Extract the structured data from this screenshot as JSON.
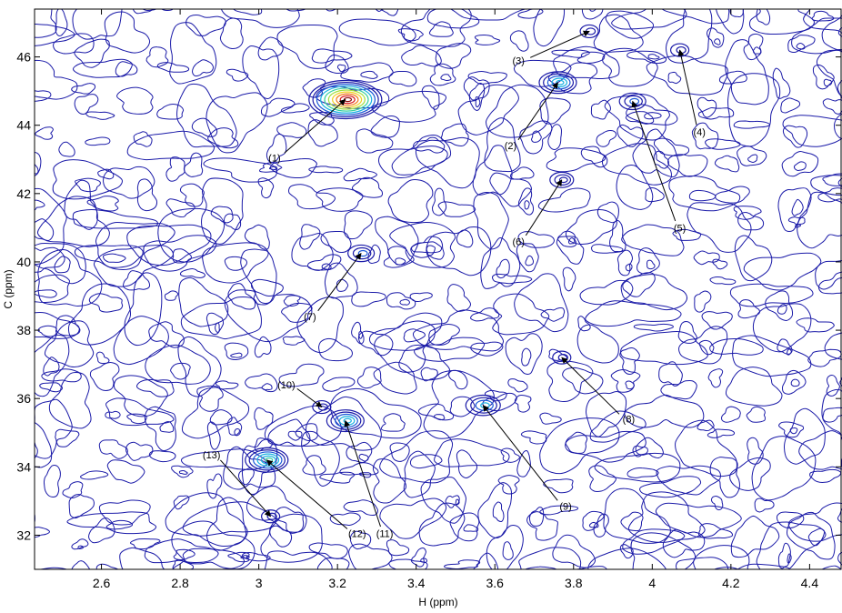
{
  "chart_data": {
    "type": "contour",
    "xlabel": "H (ppm)",
    "ylabel": "C (ppm)",
    "xlim": [
      2.43,
      4.48
    ],
    "ylim": [
      31.0,
      47.4
    ],
    "x_ticks": [
      "2.6",
      "2.8",
      "3",
      "3.2",
      "3.4",
      "3.6",
      "3.8",
      "4",
      "4.2",
      "4.4"
    ],
    "y_ticks": [
      "32",
      "34",
      "36",
      "38",
      "40",
      "42",
      "44",
      "46"
    ],
    "x_tick_values": [
      2.6,
      2.8,
      3.0,
      3.2,
      3.4,
      3.6,
      3.8,
      4.0,
      4.2,
      4.4
    ],
    "y_tick_values": [
      32,
      34,
      36,
      38,
      40,
      42,
      44,
      46
    ],
    "grid": false,
    "contour_color": "#1a1aa8",
    "peaks": [
      {
        "label": "(1)",
        "x": 3.22,
        "y": 44.75,
        "intensity": 1.0,
        "label_x": 3.04,
        "label_y": 43.05
      },
      {
        "label": "(2)",
        "x": 3.76,
        "y": 45.25,
        "intensity": 0.35,
        "label_x": 3.64,
        "label_y": 43.4
      },
      {
        "label": "(3)",
        "x": 3.84,
        "y": 46.75,
        "intensity": 0.0,
        "label_x": 3.66,
        "label_y": 45.9
      },
      {
        "label": "(4)",
        "x": 4.07,
        "y": 46.2,
        "intensity": 0.0,
        "label_x": 4.12,
        "label_y": 43.8
      },
      {
        "label": "(5)",
        "x": 3.95,
        "y": 44.7,
        "intensity": 0.15,
        "label_x": 4.07,
        "label_y": 41.0
      },
      {
        "label": "(6)",
        "x": 3.77,
        "y": 42.4,
        "intensity": 0.1,
        "label_x": 3.66,
        "label_y": 40.6
      },
      {
        "label": "(7)",
        "x": 3.26,
        "y": 40.25,
        "intensity": 0.15,
        "label_x": 3.13,
        "label_y": 38.4
      },
      {
        "label": "(8)",
        "x": 3.77,
        "y": 37.2,
        "intensity": 0.0,
        "label_x": 3.94,
        "label_y": 35.4
      },
      {
        "label": "(9)",
        "x": 3.57,
        "y": 35.8,
        "intensity": 0.3,
        "label_x": 3.78,
        "label_y": 32.85
      },
      {
        "label": "(10)",
        "x": 3.16,
        "y": 35.75,
        "intensity": 0.0,
        "label_x": 3.07,
        "label_y": 36.4
      },
      {
        "label": "(11)",
        "x": 3.22,
        "y": 35.35,
        "intensity": 0.35,
        "label_x": 3.32,
        "label_y": 32.05
      },
      {
        "label": "(12)",
        "x": 3.02,
        "y": 34.2,
        "intensity": 0.45,
        "label_x": 3.25,
        "label_y": 32.05
      },
      {
        "label": "(13)",
        "x": 3.03,
        "y": 32.55,
        "intensity": 0.0,
        "label_x": 2.88,
        "label_y": 34.35
      }
    ],
    "peak_colors": [
      "#1a1aa8",
      "#1c5ad8",
      "#18b0e0",
      "#38d0a0",
      "#a0e040",
      "#f0d020",
      "#f07818",
      "#d81818",
      "#8a0808"
    ]
  }
}
